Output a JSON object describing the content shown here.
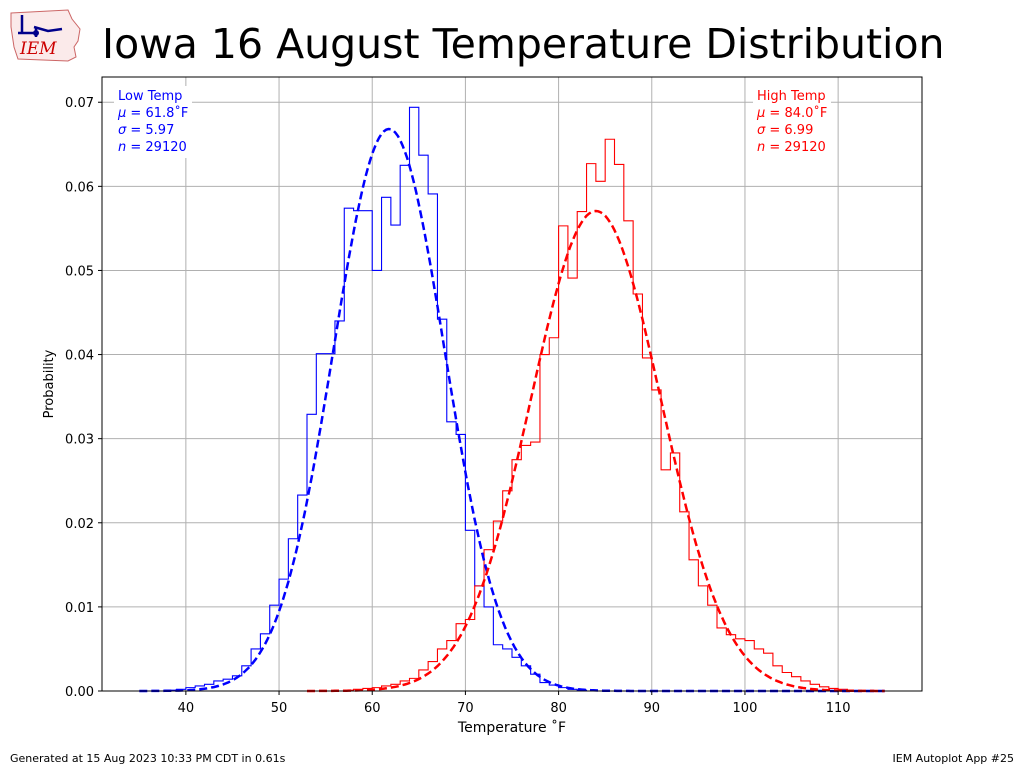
{
  "header": {
    "title": "Iowa 16 August Temperature Distribution",
    "logo_text": "IEM"
  },
  "footer": {
    "generated": "Generated at 15 Aug 2023 10:33 PM CDT in 0.61s",
    "app": "IEM Autoplot App #25"
  },
  "stats": {
    "low": {
      "label": "Low Temp",
      "mu": " = 61.8˚F",
      "sigma": " = 5.97",
      "n": " = 29120"
    },
    "high": {
      "label": "High Temp",
      "mu": " = 84.0˚F",
      "sigma": " = 6.99",
      "n": " = 29120"
    }
  },
  "chart_data": {
    "type": "line",
    "xlabel": "Temperature ˚F",
    "ylabel": "Probability",
    "xlim": [
      31,
      119
    ],
    "ylim": [
      0,
      0.073
    ],
    "xticks": [
      40,
      50,
      60,
      70,
      80,
      90,
      100,
      110
    ],
    "yticks": [
      0.0,
      0.01,
      0.02,
      0.03,
      0.04,
      0.05,
      0.06,
      0.07
    ],
    "grid": true,
    "series": [
      {
        "name": "Low Temp",
        "kind": "histogram",
        "color": "#0000ff",
        "edges": [
          38,
          39,
          40,
          41,
          42,
          43,
          44,
          45,
          46,
          47,
          48,
          49,
          50,
          51,
          52,
          53,
          54,
          55,
          56,
          57,
          58,
          59,
          60,
          61,
          62,
          63,
          64,
          65,
          66,
          67,
          68,
          69,
          70,
          71,
          72,
          73,
          74,
          75,
          76,
          77,
          78,
          79,
          80,
          81,
          82,
          83
        ],
        "values": [
          0.0001,
          0.0002,
          0.0004,
          0.0006,
          0.0008,
          0.0012,
          0.0014,
          0.0018,
          0.003,
          0.005,
          0.0068,
          0.0102,
          0.0133,
          0.0181,
          0.0233,
          0.0329,
          0.0401,
          0.0401,
          0.044,
          0.0574,
          0.0571,
          0.0571,
          0.05,
          0.0587,
          0.0554,
          0.0625,
          0.0694,
          0.0637,
          0.0591,
          0.0442,
          0.032,
          0.0305,
          0.0191,
          0.0125,
          0.01,
          0.0055,
          0.005,
          0.004,
          0.003,
          0.002,
          0.001,
          0.0007,
          0.0004,
          0.0002,
          0.0001
        ]
      },
      {
        "name": "High Temp",
        "kind": "histogram",
        "color": "#ff0000",
        "edges": [
          57,
          58,
          59,
          60,
          61,
          62,
          63,
          64,
          65,
          66,
          67,
          68,
          69,
          70,
          71,
          72,
          73,
          74,
          75,
          76,
          77,
          78,
          79,
          80,
          81,
          82,
          83,
          84,
          85,
          86,
          87,
          88,
          89,
          90,
          91,
          92,
          93,
          94,
          95,
          96,
          97,
          98,
          99,
          100,
          101,
          102,
          103,
          104,
          105,
          106,
          107,
          108,
          109,
          110,
          111
        ],
        "values": [
          0.0001,
          0.0002,
          0.0003,
          0.0004,
          0.0006,
          0.0008,
          0.0012,
          0.0015,
          0.0025,
          0.0035,
          0.005,
          0.006,
          0.008,
          0.0085,
          0.0125,
          0.0168,
          0.0202,
          0.0238,
          0.0275,
          0.0292,
          0.0296,
          0.04,
          0.042,
          0.0553,
          0.0491,
          0.057,
          0.0627,
          0.0606,
          0.0656,
          0.0626,
          0.0559,
          0.0472,
          0.0396,
          0.0358,
          0.0263,
          0.0283,
          0.0213,
          0.0156,
          0.0125,
          0.0102,
          0.0075,
          0.0067,
          0.0062,
          0.006,
          0.005,
          0.0045,
          0.003,
          0.0022,
          0.0017,
          0.0012,
          0.0008,
          0.0005,
          0.0003,
          0.0002
        ]
      },
      {
        "name": "Low Temp normal fit",
        "kind": "normal",
        "color": "#0000ff",
        "mu": 61.8,
        "sigma": 5.97,
        "xrange": [
          35,
          115
        ]
      },
      {
        "name": "High Temp normal fit",
        "kind": "normal",
        "color": "#ff0000",
        "mu": 84.0,
        "sigma": 6.99,
        "xrange": [
          53,
          115
        ]
      }
    ]
  }
}
